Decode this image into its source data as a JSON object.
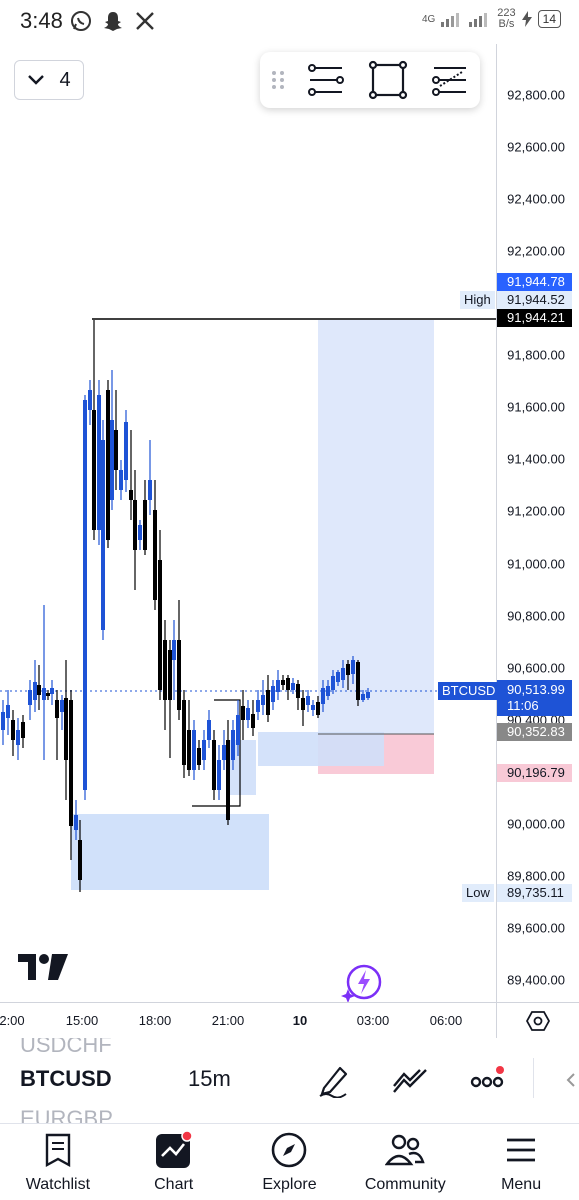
{
  "status_bar": {
    "time": "3:48",
    "network": "4G",
    "net_speed_value": "223",
    "net_speed_unit": "B/s",
    "battery": "14"
  },
  "interval_menu": {
    "label": "4"
  },
  "price_axis": {
    "ticks": [
      "92,800.00",
      "92,600.00",
      "92,400.00",
      "92,200.00",
      "91,800.00",
      "91,600.00",
      "91,400.00",
      "91,200.00",
      "91,000.00",
      "90,800.00",
      "90,600.00",
      "90,400.00",
      "90,000.00",
      "89,800.00",
      "89,600.00",
      "89,400.00"
    ],
    "labels": {
      "blue_top": "91,944.78",
      "high": "91,944.52",
      "black": "91,944.21",
      "current_price": "90,513.99",
      "current_countdown": "11:06",
      "gray": "90,352.83",
      "pink": "90,196.79",
      "low": "89,735.11"
    },
    "tags": {
      "high": "High",
      "low": "Low",
      "symbol": "BTCUSD"
    }
  },
  "time_axis": {
    "ticks": [
      "2:00",
      "15:00",
      "18:00",
      "21:00",
      "10",
      "03:00",
      "06:00"
    ]
  },
  "symbol_bar": {
    "prev_symbol": "USDCHF",
    "symbol": "BTCUSD",
    "interval": "15m",
    "next_symbol": "EURGBP"
  },
  "nav": [
    {
      "label": "Watchlist",
      "icon": "watchlist-icon"
    },
    {
      "label": "Chart",
      "icon": "chart-icon"
    },
    {
      "label": "Explore",
      "icon": "compass-icon"
    },
    {
      "label": "Community",
      "icon": "community-icon"
    },
    {
      "label": "Menu",
      "icon": "menu-icon"
    }
  ],
  "colors": {
    "bull": "#1e53d6",
    "bear": "#000000",
    "zone_blue": "#d6e4fb",
    "zone_pink": "#f8c9d6",
    "price_blue": "#2962ff",
    "accent_red": "#f23645"
  }
}
